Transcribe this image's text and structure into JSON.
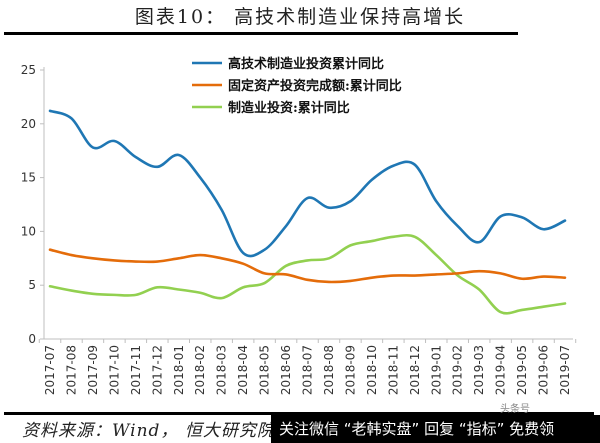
{
  "title": "图表10：  高技术制造业保持高增长",
  "source": "资料来源：Wind， 恒大研究院",
  "watermark": {
    "text": "关注微信 “老韩实盘” 回复 “指标” 免费领",
    "top_text": "头条号"
  },
  "chart_data": {
    "type": "line",
    "title": "图表10：高技术制造业保持高增长",
    "xlabel": "",
    "ylabel": "",
    "ylim": [
      0,
      25
    ],
    "yticks": [
      0,
      5,
      10,
      15,
      20,
      25
    ],
    "grid": false,
    "legend_position": "top-center",
    "x": [
      "2017-07",
      "2017-08",
      "2017-09",
      "2017-10",
      "2017-11",
      "2017-12",
      "2018-01",
      "2018-02",
      "2018-03",
      "2018-04",
      "2018-05",
      "2018-06",
      "2018-07",
      "2018-08",
      "2018-09",
      "2018-10",
      "2018-11",
      "2018-12",
      "2019-01",
      "2019-02",
      "2019-03",
      "2019-04",
      "2019-05",
      "2019-06",
      "2019-07"
    ],
    "series": [
      {
        "name": "高技术制造业投资累计同比",
        "color": "#1F77B4",
        "values": [
          21.2,
          20.5,
          17.8,
          18.4,
          16.9,
          16.0,
          17.1,
          15.0,
          12.0,
          8.0,
          8.3,
          10.5,
          13.1,
          12.2,
          12.8,
          14.8,
          16.1,
          16.2,
          12.8,
          10.5,
          9.0,
          11.4,
          11.3,
          10.2,
          11.0
        ]
      },
      {
        "name": "固定资产投资完成额:累计同比",
        "color": "#E46C0A",
        "values": [
          8.3,
          7.8,
          7.5,
          7.3,
          7.2,
          7.2,
          7.5,
          7.8,
          7.5,
          7.0,
          6.1,
          6.0,
          5.5,
          5.3,
          5.4,
          5.7,
          5.9,
          5.9,
          6.0,
          6.1,
          6.3,
          6.1,
          5.6,
          5.8,
          5.7
        ]
      },
      {
        "name": "制造业投资:累计同比",
        "color": "#92D050",
        "values": [
          4.9,
          4.5,
          4.2,
          4.1,
          4.1,
          4.8,
          4.6,
          4.3,
          3.8,
          4.8,
          5.2,
          6.8,
          7.3,
          7.5,
          8.7,
          9.1,
          9.5,
          9.5,
          7.8,
          5.9,
          4.6,
          2.5,
          2.7,
          3.0,
          3.3
        ]
      }
    ]
  }
}
